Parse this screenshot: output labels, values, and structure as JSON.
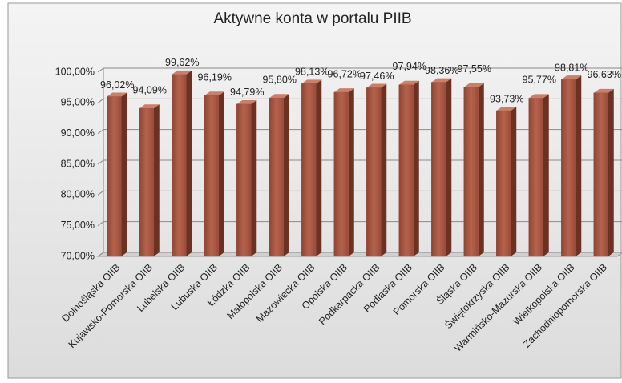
{
  "chart_data": {
    "type": "bar3d",
    "title": "Aktywne konta w portalu PIIB",
    "categories": [
      "Dolnośląska OIIB",
      "Kujawsko-Pomorska OIIB",
      "Lubelska OIIB",
      "Lubuska OIIB",
      "Łódzka OIIB",
      "Małopolska OIIB",
      "Mazowiecka OIIB",
      "Opolska OIIB",
      "Podkarpacka OIIB",
      "Podlaska OIIB",
      "Pomorska OIIB",
      "Śląska OIIB",
      "Świętokrzyska OIIB",
      "Warmińsko-Mazurska OIIB",
      "Wielkopolska OIIB",
      "Zachodniopomorska OIIB"
    ],
    "values": [
      96.02,
      94.09,
      99.62,
      96.19,
      94.79,
      95.8,
      98.13,
      96.72,
      97.46,
      97.94,
      98.36,
      97.55,
      93.73,
      95.77,
      98.81,
      96.63
    ],
    "value_labels": [
      "96,02%",
      "94,09%",
      "99,62%",
      "96,19%",
      "94,79%",
      "95,80%",
      "98,13%",
      "96,72%",
      "97,46%",
      "97,94%",
      "98,36%",
      "97,55%",
      "93,73%",
      "95,77%",
      "98,81%",
      "96,63%"
    ],
    "color": "#a2533f",
    "ylim": [
      70,
      100
    ],
    "yticks": [
      {
        "value": 70,
        "label": "70,00%"
      },
      {
        "value": 75,
        "label": "75,00%"
      },
      {
        "value": 80,
        "label": "80,00%"
      },
      {
        "value": 85,
        "label": "85,00%"
      },
      {
        "value": 90,
        "label": "90,00%"
      },
      {
        "value": 95,
        "label": "95,00%"
      },
      {
        "value": 100,
        "label": "100,00%"
      }
    ],
    "grid": true
  }
}
